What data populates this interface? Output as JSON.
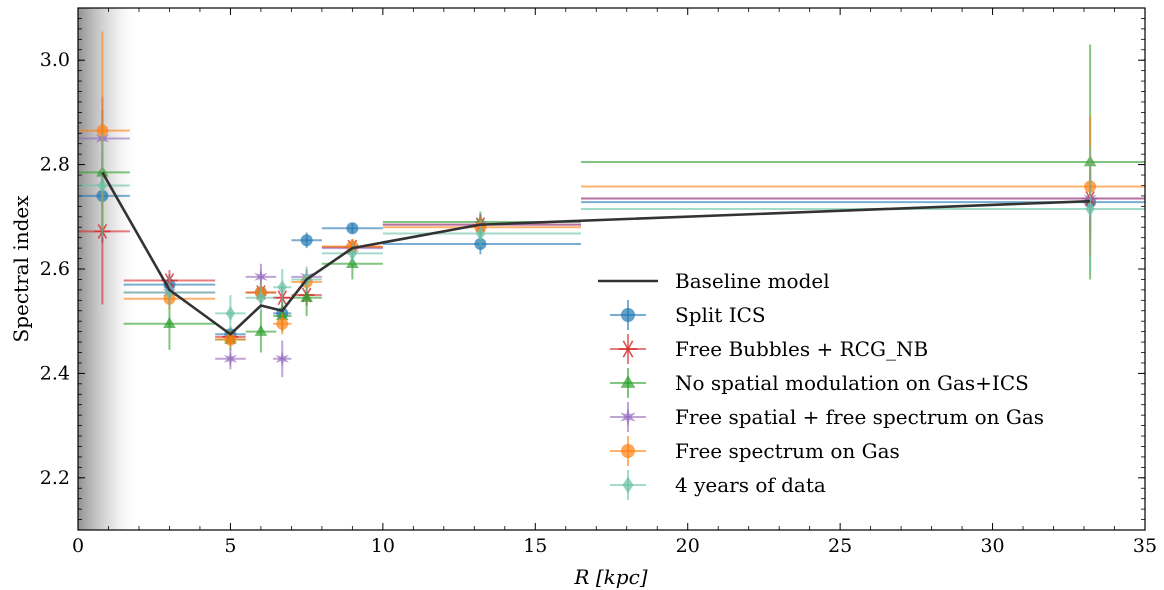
{
  "chart_data": {
    "type": "scatter",
    "xlabel": "R [kpc]",
    "ylabel": "Spectral index",
    "xlim": [
      0,
      35
    ],
    "ylim": [
      2.1,
      3.1
    ],
    "xticks": [
      0,
      5,
      10,
      15,
      20,
      25,
      30,
      35
    ],
    "xtick_labels": [
      "0",
      "5",
      "10",
      "15",
      "20",
      "25",
      "30",
      "35"
    ],
    "yticks": [
      2.2,
      2.4,
      2.6,
      2.8,
      3.0
    ],
    "ytick_labels": [
      "2.2",
      "2.4",
      "2.6",
      "2.8",
      "3.0"
    ],
    "grid": false,
    "legend_position": "lower-right",
    "shaded_region": [
      0,
      2
    ],
    "baseline": {
      "name": "Baseline model",
      "color": "#333333",
      "x": [
        0.8,
        3,
        5,
        6,
        6.7,
        7.5,
        9,
        13.2,
        33.2
      ],
      "y": [
        2.785,
        2.56,
        2.475,
        2.53,
        2.52,
        2.58,
        2.64,
        2.685,
        2.73
      ]
    },
    "series": [
      {
        "name": "Split ICS",
        "color": "#1f77b4",
        "marker": "circle",
        "points": [
          {
            "x": 0.8,
            "y": 2.74,
            "xlo": 0,
            "xhi": 1.7,
            "yerr": 0.09
          },
          {
            "x": 3,
            "y": 2.57,
            "xlo": 1.5,
            "xhi": 4.5,
            "yerr": 0.02
          },
          {
            "x": 5,
            "y": 2.475,
            "xlo": 4.5,
            "xhi": 5.5,
            "yerr": 0.015
          },
          {
            "x": 6,
            "y": 2.555,
            "xlo": 5.5,
            "xhi": 6.5,
            "yerr": 0.015
          },
          {
            "x": 6.7,
            "y": 2.515,
            "xlo": 6.4,
            "xhi": 7.0,
            "yerr": 0.015
          },
          {
            "x": 7.5,
            "y": 2.655,
            "xlo": 7.0,
            "xhi": 8.0,
            "yerr": 0.015
          },
          {
            "x": 9,
            "y": 2.678,
            "xlo": 8.0,
            "xhi": 10.0,
            "yerr": 0.01
          },
          {
            "x": 13.2,
            "y": 2.648,
            "xlo": 10.0,
            "xhi": 16.5,
            "yerr": 0.02
          },
          {
            "x": 33.2,
            "y": 2.728,
            "xlo": 16.5,
            "xhi": 35,
            "yerr": 0.06
          }
        ]
      },
      {
        "name": "Free Bubbles + RCG_NB",
        "color": "#d62728",
        "marker": "x-star",
        "points": [
          {
            "x": 0.8,
            "y": 2.672,
            "xlo": 0,
            "xhi": 1.7,
            "yerr": 0.14
          },
          {
            "x": 3,
            "y": 2.578,
            "xlo": 1.5,
            "xhi": 4.5,
            "yerr": 0.02
          },
          {
            "x": 5,
            "y": 2.47,
            "xlo": 4.5,
            "xhi": 5.5,
            "yerr": 0.015
          },
          {
            "x": 6,
            "y": 2.555,
            "xlo": 5.5,
            "xhi": 6.5,
            "yerr": 0.02
          },
          {
            "x": 6.7,
            "y": 2.545,
            "xlo": 6.4,
            "xhi": 7.0,
            "yerr": 0.02
          },
          {
            "x": 7.5,
            "y": 2.55,
            "xlo": 7.0,
            "xhi": 8.0,
            "yerr": 0.02
          },
          {
            "x": 9,
            "y": 2.642,
            "xlo": 8.0,
            "xhi": 10.0,
            "yerr": 0.015
          },
          {
            "x": 13.2,
            "y": 2.685,
            "xlo": 10.0,
            "xhi": 16.5,
            "yerr": 0.02
          },
          {
            "x": 33.2,
            "y": 2.735,
            "xlo": 16.5,
            "xhi": 35,
            "yerr": 0.08
          }
        ]
      },
      {
        "name": "No spatial modulation on Gas+ICS",
        "color": "#2ca02c",
        "marker": "triangle",
        "points": [
          {
            "x": 0.8,
            "y": 2.785,
            "xlo": 0,
            "xhi": 1.7,
            "yerr": 0.12
          },
          {
            "x": 3,
            "y": 2.495,
            "xlo": 1.5,
            "xhi": 4.5,
            "yerr": 0.05
          },
          {
            "x": 5,
            "y": 2.465,
            "xlo": 4.5,
            "xhi": 5.5,
            "yerr": 0.02
          },
          {
            "x": 6,
            "y": 2.48,
            "xlo": 5.5,
            "xhi": 6.5,
            "yerr": 0.04
          },
          {
            "x": 6.7,
            "y": 2.51,
            "xlo": 6.4,
            "xhi": 7.0,
            "yerr": 0.03
          },
          {
            "x": 7.5,
            "y": 2.545,
            "xlo": 7.0,
            "xhi": 8.0,
            "yerr": 0.035
          },
          {
            "x": 9,
            "y": 2.61,
            "xlo": 8.0,
            "xhi": 10.0,
            "yerr": 0.03
          },
          {
            "x": 13.2,
            "y": 2.69,
            "xlo": 10.0,
            "xhi": 16.5,
            "yerr": 0.02
          },
          {
            "x": 33.2,
            "y": 2.805,
            "xlo": 16.5,
            "xhi": 35,
            "yerr": 0.225
          }
        ]
      },
      {
        "name": "Free spatial + free spectrum on Gas",
        "color": "#9467bd",
        "marker": "star",
        "points": [
          {
            "x": 0.8,
            "y": 2.85,
            "xlo": 0,
            "xhi": 1.7,
            "yerr": 0.08
          },
          {
            "x": 3,
            "y": 2.555,
            "xlo": 1.5,
            "xhi": 4.5,
            "yerr": 0.02
          },
          {
            "x": 5,
            "y": 2.428,
            "xlo": 4.5,
            "xhi": 5.5,
            "yerr": 0.02
          },
          {
            "x": 6,
            "y": 2.585,
            "xlo": 5.5,
            "xhi": 6.5,
            "yerr": 0.025
          },
          {
            "x": 6.7,
            "y": 2.428,
            "xlo": 6.4,
            "xhi": 7.0,
            "yerr": 0.035
          },
          {
            "x": 7.5,
            "y": 2.585,
            "xlo": 7.0,
            "xhi": 8.0,
            "yerr": 0.015
          },
          {
            "x": 9,
            "y": 2.64,
            "xlo": 8.0,
            "xhi": 10.0,
            "yerr": 0.015
          },
          {
            "x": 13.2,
            "y": 2.685,
            "xlo": 10.0,
            "xhi": 16.5,
            "yerr": 0.02
          },
          {
            "x": 33.2,
            "y": 2.735,
            "xlo": 16.5,
            "xhi": 35,
            "yerr": 0.05
          }
        ]
      },
      {
        "name": "Free spectrum on Gas",
        "color": "#ff7f0e",
        "marker": "circle",
        "points": [
          {
            "x": 0.8,
            "y": 2.865,
            "xlo": 0,
            "xhi": 1.7,
            "yerr": 0.19
          },
          {
            "x": 3,
            "y": 2.543,
            "xlo": 1.5,
            "xhi": 4.5,
            "yerr": 0.02
          },
          {
            "x": 5,
            "y": 2.465,
            "xlo": 4.5,
            "xhi": 5.5,
            "yerr": 0.015
          },
          {
            "x": 6,
            "y": 2.555,
            "xlo": 5.5,
            "xhi": 6.5,
            "yerr": 0.02
          },
          {
            "x": 6.7,
            "y": 2.495,
            "xlo": 6.4,
            "xhi": 7.0,
            "yerr": 0.02
          },
          {
            "x": 7.5,
            "y": 2.575,
            "xlo": 7.0,
            "xhi": 8.0,
            "yerr": 0.015
          },
          {
            "x": 9,
            "y": 2.643,
            "xlo": 8.0,
            "xhi": 10.0,
            "yerr": 0.015
          },
          {
            "x": 13.2,
            "y": 2.68,
            "xlo": 10.0,
            "xhi": 16.5,
            "yerr": 0.02
          },
          {
            "x": 33.2,
            "y": 2.758,
            "xlo": 16.5,
            "xhi": 35,
            "yerr": 0.135
          }
        ]
      },
      {
        "name": "4 years of data",
        "color": "#66c2a5",
        "marker": "diamond",
        "points": [
          {
            "x": 0.8,
            "y": 2.76,
            "xlo": 0,
            "xhi": 1.7,
            "yerr": 0.1
          },
          {
            "x": 3,
            "y": 2.555,
            "xlo": 1.5,
            "xhi": 4.5,
            "yerr": 0.03
          },
          {
            "x": 5,
            "y": 2.515,
            "xlo": 4.5,
            "xhi": 5.5,
            "yerr": 0.035
          },
          {
            "x": 6,
            "y": 2.545,
            "xlo": 5.5,
            "xhi": 6.5,
            "yerr": 0.03
          },
          {
            "x": 6.7,
            "y": 2.565,
            "xlo": 6.4,
            "xhi": 7.0,
            "yerr": 0.035
          },
          {
            "x": 7.5,
            "y": 2.58,
            "xlo": 7.0,
            "xhi": 8.0,
            "yerr": 0.025
          },
          {
            "x": 9,
            "y": 2.63,
            "xlo": 8.0,
            "xhi": 10.0,
            "yerr": 0.02
          },
          {
            "x": 13.2,
            "y": 2.668,
            "xlo": 10.0,
            "xhi": 16.5,
            "yerr": 0.025
          },
          {
            "x": 33.2,
            "y": 2.715,
            "xlo": 16.5,
            "xhi": 35,
            "yerr": 0.12
          }
        ]
      }
    ]
  }
}
